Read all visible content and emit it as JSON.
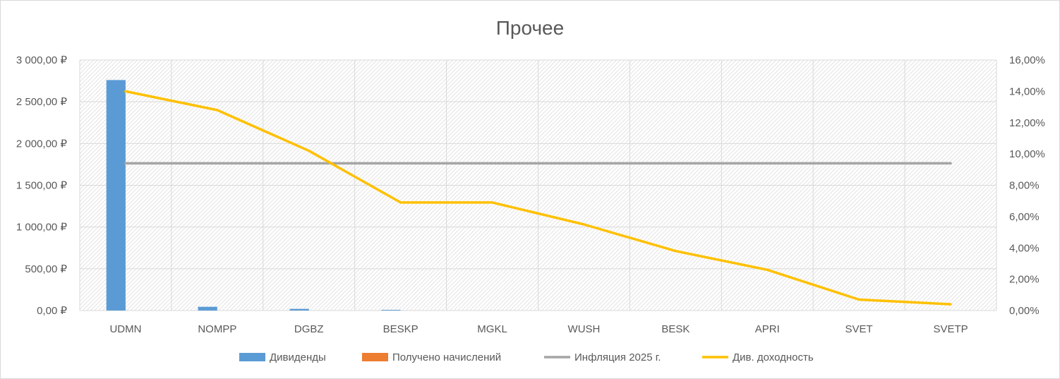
{
  "chart_data": {
    "type": "bar",
    "title": "Прочее",
    "categories": [
      "UDMN",
      "NOMPP",
      "DGBZ",
      "BESKP",
      "MGKL",
      "WUSH",
      "BESK",
      "APRI",
      "SVET",
      "SVETP"
    ],
    "y_left": {
      "min": 0,
      "max": 3000,
      "step": 500,
      "tick_labels": [
        "0,00 ₽",
        "500,00 ₽",
        "1 000,00 ₽",
        "1 500,00 ₽",
        "2 000,00 ₽",
        "2 500,00 ₽",
        "3 000,00 ₽"
      ]
    },
    "y_right": {
      "min": 0,
      "max": 0.16,
      "step": 0.02,
      "tick_labels": [
        "0,00%",
        "2,00%",
        "4,00%",
        "6,00%",
        "8,00%",
        "10,00%",
        "12,00%",
        "14,00%",
        "16,00%"
      ]
    },
    "grid": true,
    "legend_position": "bottom",
    "series": [
      {
        "name": "Дивиденды",
        "kind": "bar",
        "axis": "left",
        "color": "#5b9bd5",
        "values": [
          2760,
          45,
          20,
          8,
          0,
          0,
          0,
          0,
          0,
          0
        ]
      },
      {
        "name": "Получено начислений",
        "kind": "bar",
        "axis": "left",
        "color": "#ed7d31",
        "values": [
          0,
          0,
          0,
          0,
          0,
          0,
          0,
          0,
          0,
          0
        ]
      },
      {
        "name": "Инфляция 2025 г.",
        "kind": "line",
        "axis": "right",
        "color": "#a5a5a5",
        "values": [
          0.094,
          0.094,
          0.094,
          0.094,
          0.094,
          0.094,
          0.094,
          0.094,
          0.094,
          0.094
        ]
      },
      {
        "name": "Див. доходность",
        "kind": "line",
        "axis": "right",
        "color": "#ffc000",
        "values": [
          0.14,
          0.128,
          0.102,
          0.069,
          0.069,
          0.055,
          0.038,
          0.026,
          0.007,
          0.004
        ]
      }
    ]
  }
}
